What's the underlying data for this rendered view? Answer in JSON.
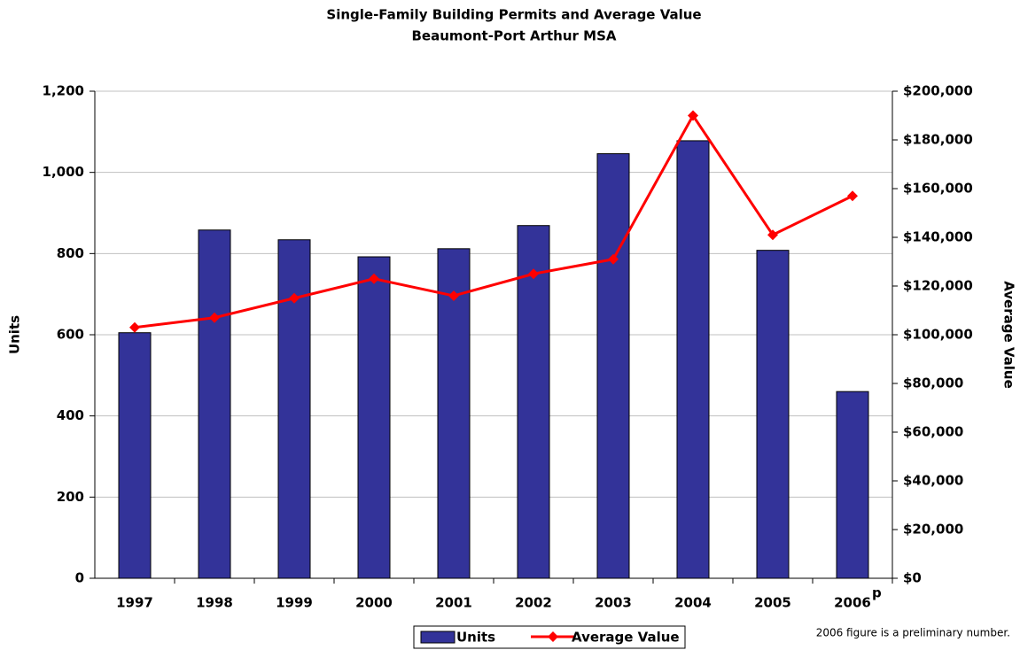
{
  "chart_data": {
    "type": "bar_line",
    "title": "Single-Family Building Permits and Average Value",
    "subtitle": "Beaumont-Port Arthur MSA",
    "y_label": "Units",
    "y2_label": "Average Value",
    "categories": [
      "1997",
      "1998",
      "1999",
      "2000",
      "2001",
      "2002",
      "2003",
      "2004",
      "2005",
      "2006"
    ],
    "series": [
      {
        "name": "Units",
        "type": "bar",
        "color": "#333399",
        "values": [
          605,
          858,
          834,
          792,
          812,
          869,
          1046,
          1078,
          808,
          460
        ]
      },
      {
        "name": "Average Value",
        "type": "line",
        "axis": "y2",
        "color": "#ff0000",
        "values": [
          103000,
          107000,
          115000,
          123000,
          116000,
          125000,
          131000,
          190000,
          141000,
          157000
        ]
      }
    ],
    "ylim": [
      0,
      1200
    ],
    "yticks": [
      0,
      200,
      400,
      600,
      800,
      {
        "value": 1000,
        "label": "1,000"
      },
      {
        "value": 1200,
        "label": "1,200"
      }
    ],
    "y2lim": [
      0,
      200000
    ],
    "y2ticks": [
      {
        "value": 0,
        "label": "$0"
      },
      {
        "value": 20000,
        "label": "$20,000"
      },
      {
        "value": 40000,
        "label": "$40,000"
      },
      {
        "value": 60000,
        "label": "$60,000"
      },
      {
        "value": 80000,
        "label": "$80,000"
      },
      {
        "value": 100000,
        "label": "$100,000"
      },
      {
        "value": 120000,
        "label": "$120,000"
      },
      {
        "value": 140000,
        "label": "$140,000"
      },
      {
        "value": 160000,
        "label": "$160,000"
      },
      {
        "value": 180000,
        "label": "$180,000"
      },
      {
        "value": 200000,
        "label": "$200,000"
      }
    ],
    "grid": true,
    "y2_color": "#ff0000",
    "legend": "bottom",
    "annotations": [
      "p",
      "2006 figure is a preliminary number."
    ]
  }
}
